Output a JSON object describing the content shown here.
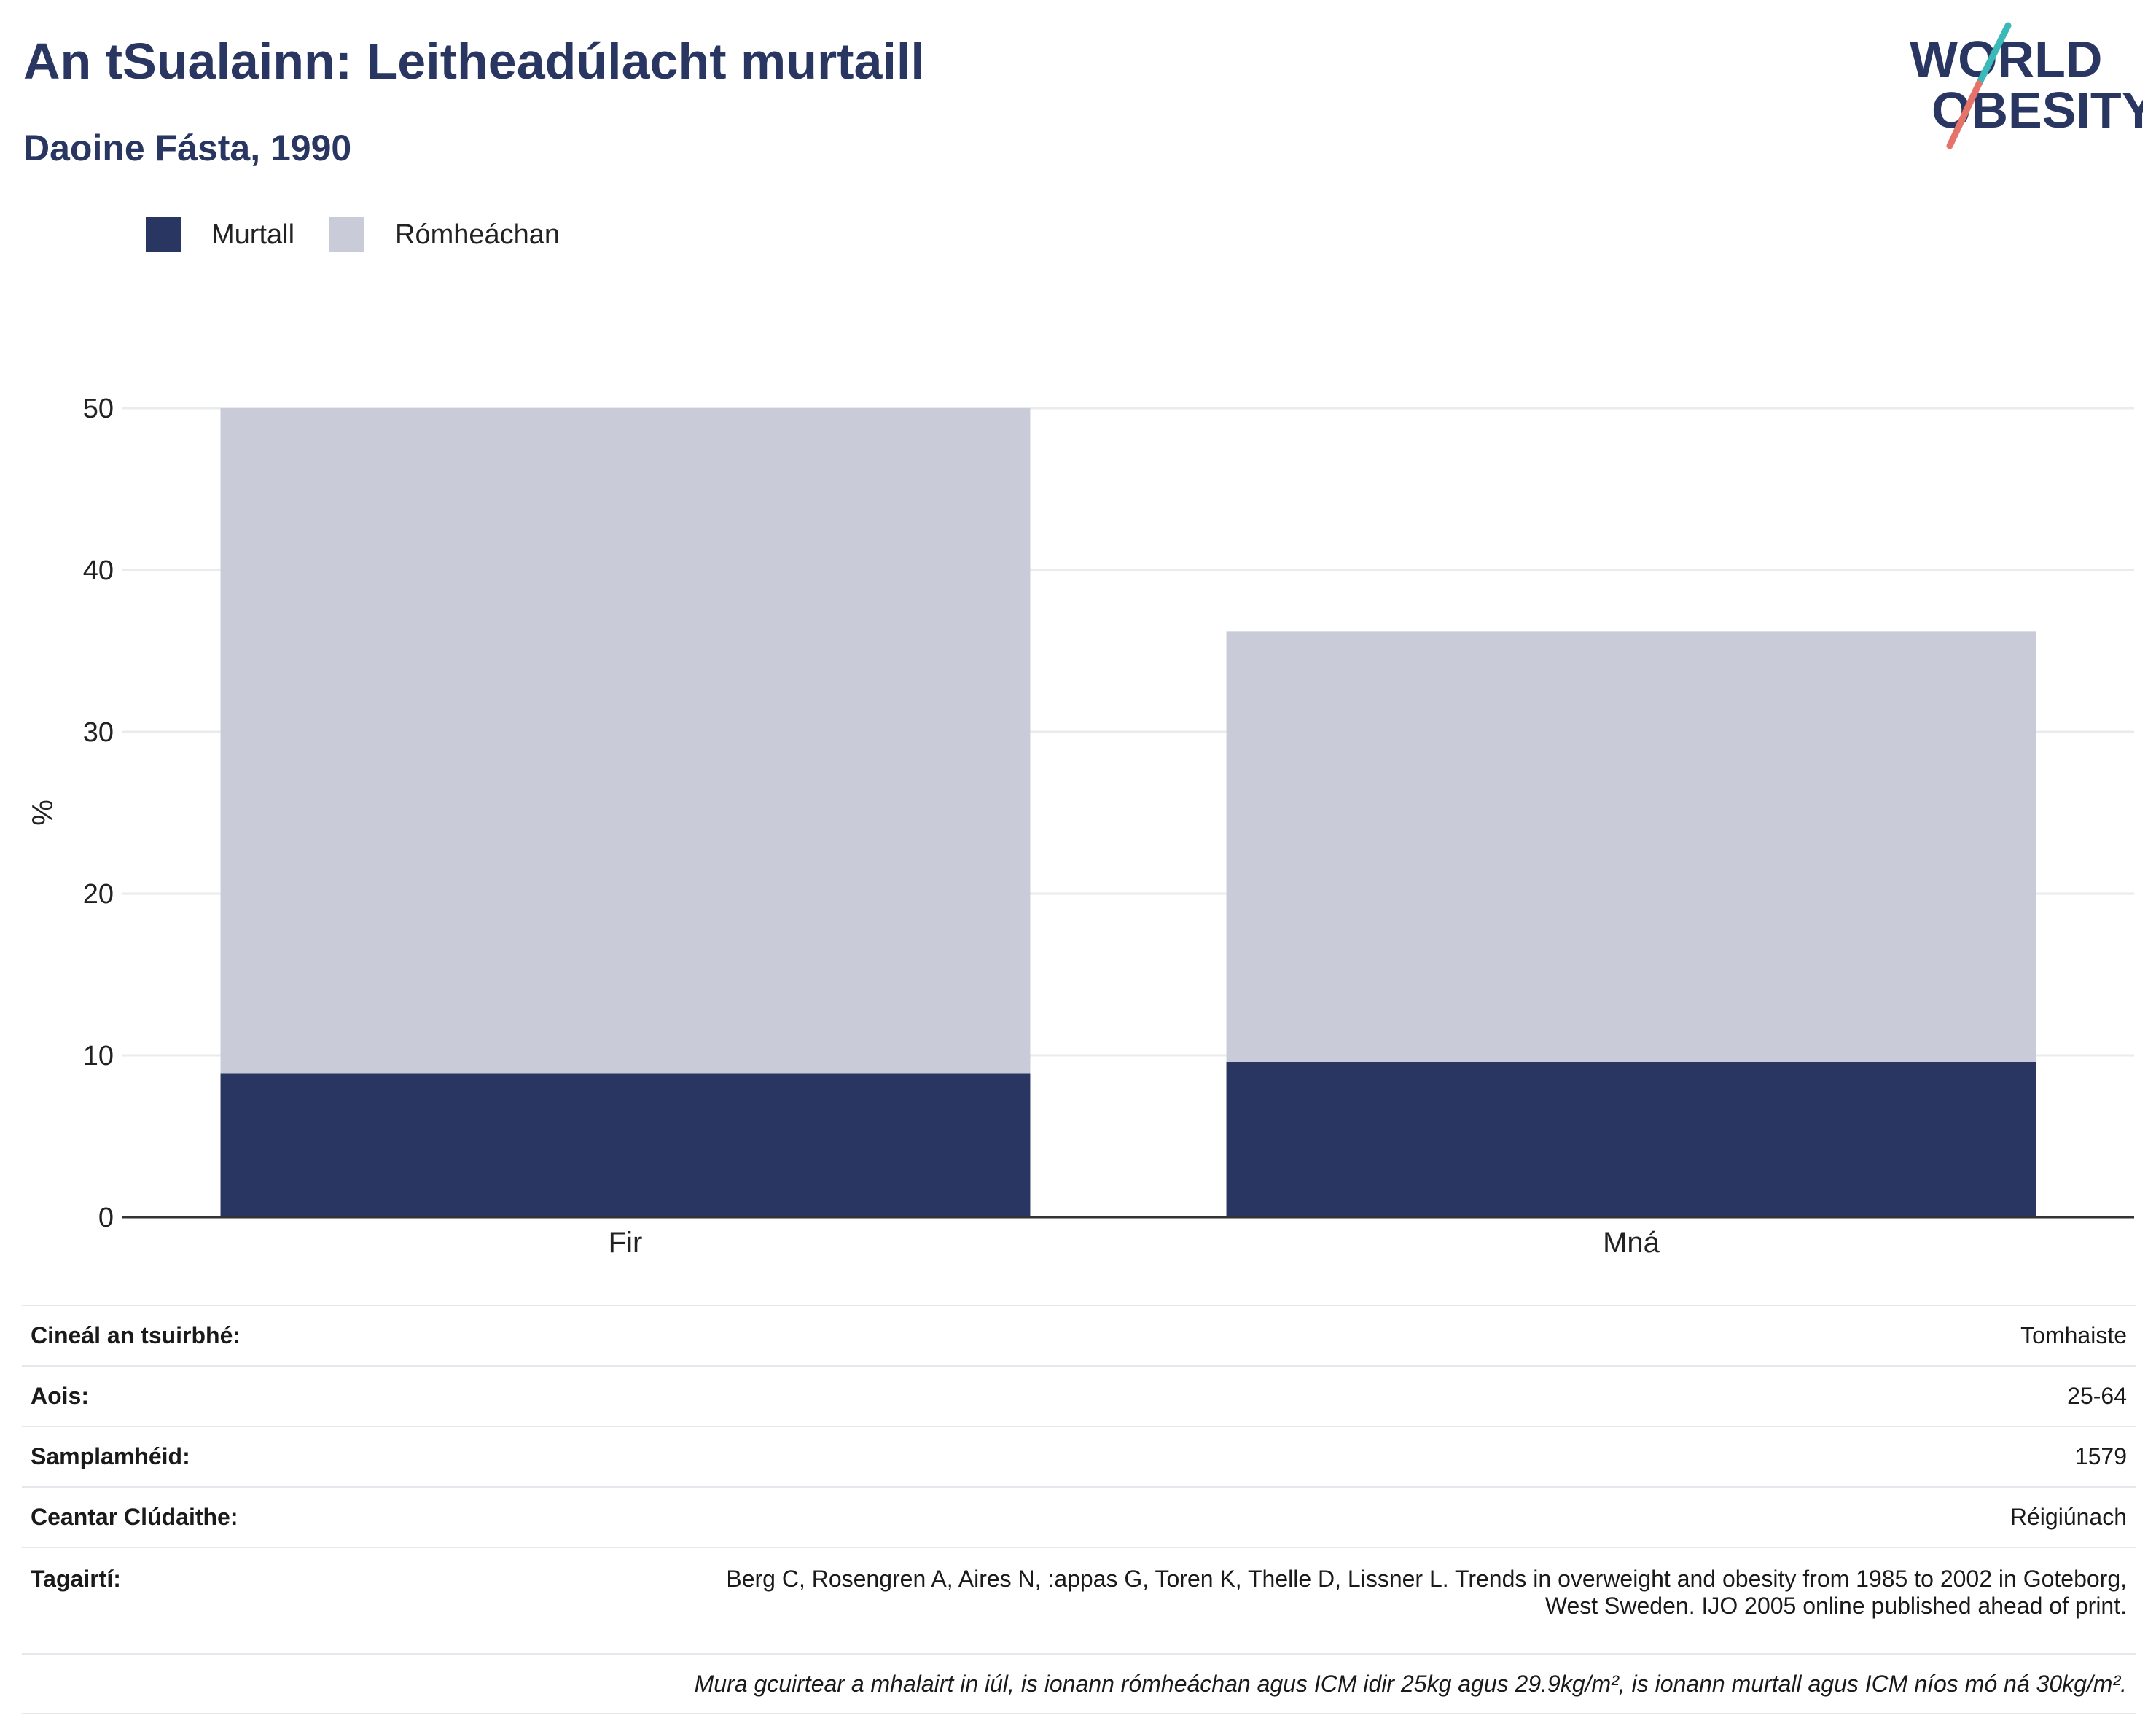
{
  "header": {
    "title": "An tSualainn: Leitheadúlacht murtaill",
    "subtitle": "Daoine Fásta, 1990"
  },
  "logo": {
    "line1": "WORLD",
    "line2": "OBESITY"
  },
  "colors": {
    "title": "#2a3662",
    "obesity": "#2a3662",
    "overweight": "#c9ccd8",
    "grid": "#e9ebef",
    "axis": "#333333",
    "logo_teal": "#3bb8b8",
    "logo_red": "#e5736a"
  },
  "legend": [
    {
      "label": "Murtall",
      "color": "#2a3662"
    },
    {
      "label": "Rómheáchan",
      "color": "#c9ccd8"
    }
  ],
  "chart_data": {
    "type": "bar",
    "stacked": true,
    "categories": [
      "Fir",
      "Mná"
    ],
    "series": [
      {
        "name": "Murtall",
        "values": [
          8.9,
          9.6
        ]
      },
      {
        "name": "Rómheáchan",
        "values": [
          41.1,
          26.6
        ]
      }
    ],
    "ylabel": "%",
    "ylim": [
      0,
      50
    ],
    "yticks": [
      0,
      10,
      20,
      30,
      40,
      50
    ],
    "grid": true,
    "legend_position": "top-left"
  },
  "meta": {
    "survey_type": {
      "label": "Cineál an tsuirbhé:",
      "value": "Tomhaiste"
    },
    "age": {
      "label": "Aois:",
      "value": "25-64"
    },
    "sample_size": {
      "label": "Samplamhéid:",
      "value": "1579"
    },
    "area": {
      "label": "Ceantar Clúdaithe:",
      "value": "Réigiúnach"
    },
    "references": {
      "label": "Tagairtí:",
      "line1": "Berg C, Rosengren A, Aires N, :appas G, Toren K, Thelle D, Lissner L. Trends in overweight and obesity from 1985 to 2002 in Goteborg,",
      "line2": "West Sweden. IJO 2005 online published ahead of print."
    },
    "note": "Mura gcuirtear a mhalairt in iúl, is ionann rómheáchan agus ICM idir 25kg agus 29.9kg/m², is ionann murtall agus ICM níos mó ná 30kg/m²."
  }
}
